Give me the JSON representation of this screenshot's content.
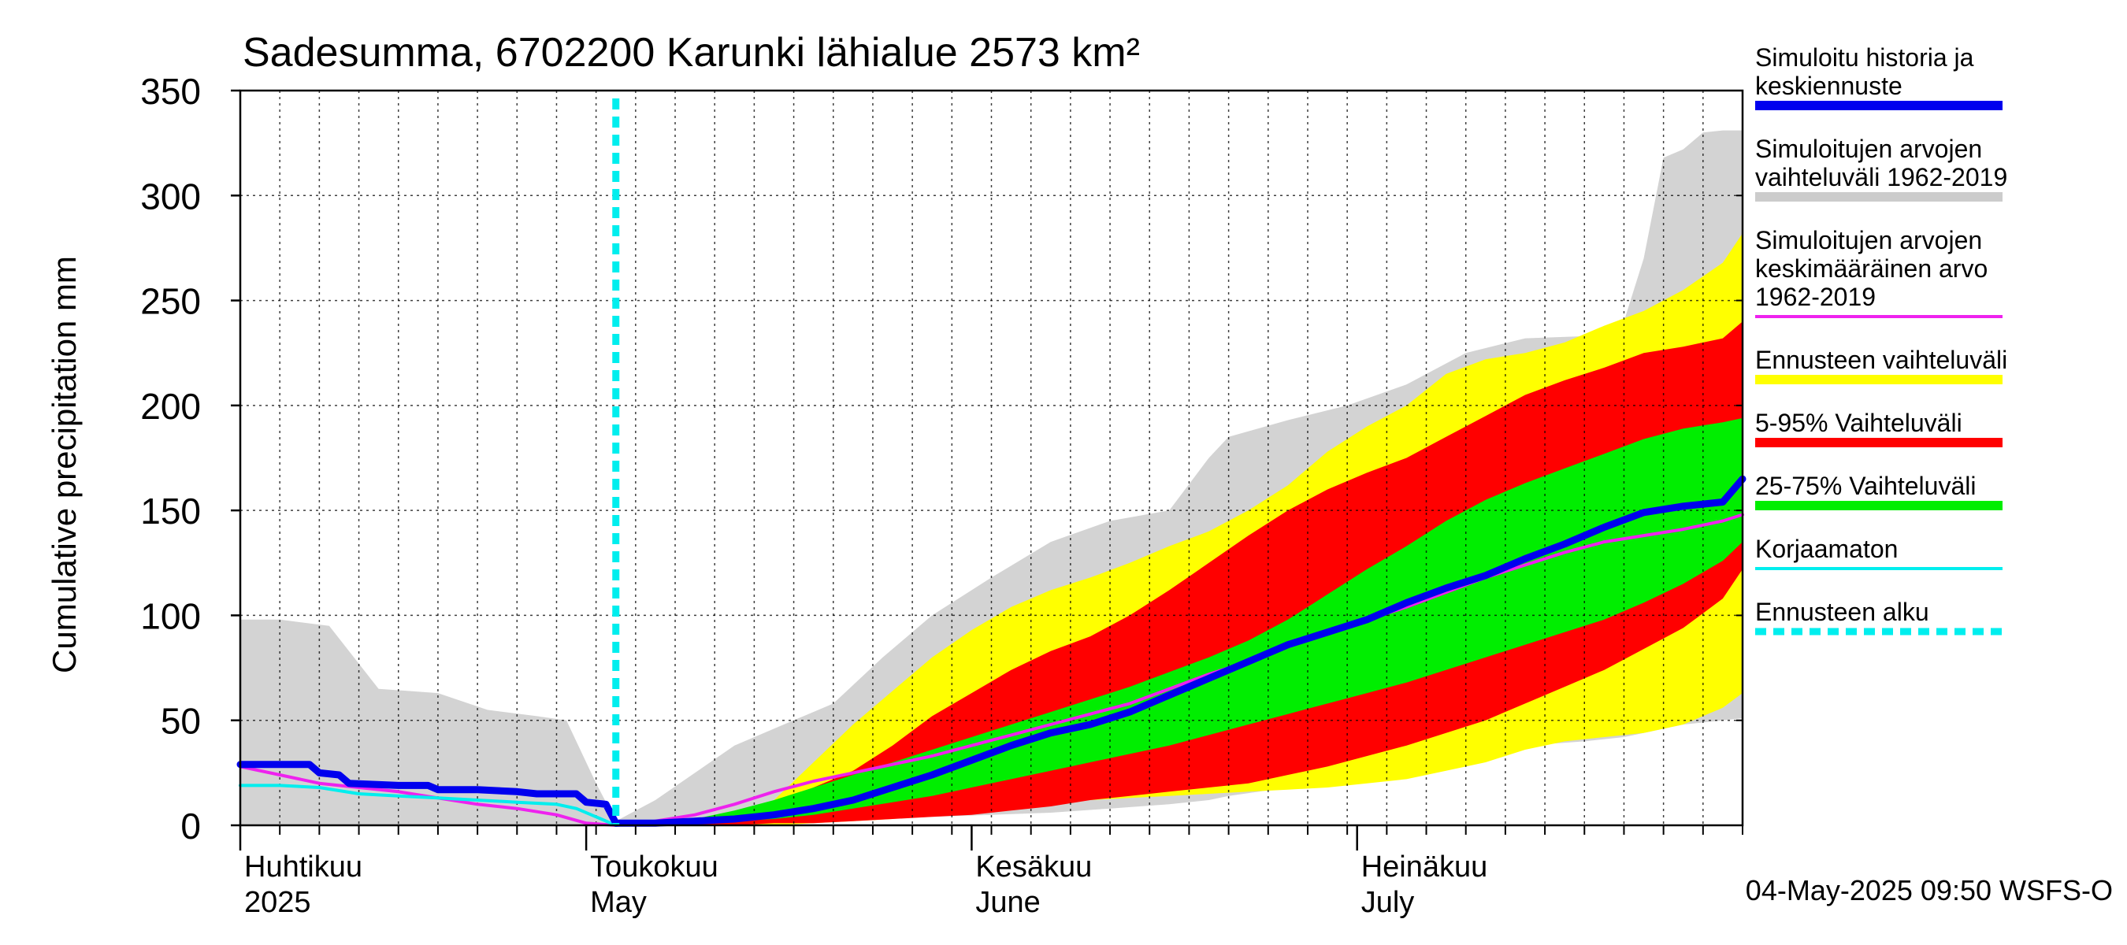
{
  "chart_data": {
    "type": "area",
    "title": "Sadesumma, 6702200 Karunki lähialue 2573 km²",
    "ylabel": "Cumulative precipitation   mm",
    "xlabel": "",
    "ylim": [
      0,
      350
    ],
    "yticks": [
      0,
      50,
      100,
      150,
      200,
      250,
      300,
      350
    ],
    "xlim_day": [
      0,
      152
    ],
    "grid": true,
    "legend_position": "right",
    "timestamp": "04-May-2025 09:50 WSFS-O",
    "month_labels": [
      {
        "line1": "Huhtikuu",
        "line2": "2025",
        "day": 0
      },
      {
        "line1": "Toukokuu",
        "line2": "May",
        "day": 35
      },
      {
        "line1": "Kesäkuu",
        "line2": "June",
        "day": 74
      },
      {
        "line1": "Heinäkuu",
        "line2": "July",
        "day": 113
      }
    ],
    "forecast_start_day": 38,
    "legend": [
      {
        "label_lines": [
          "Simuloitu historia ja",
          "keskiennuste"
        ],
        "color": "#0000ee",
        "style": "line"
      },
      {
        "label_lines": [
          "Simuloitujen arvojen",
          "vaihteluväli 1962-2019"
        ],
        "color": "#cccccc",
        "style": "line"
      },
      {
        "label_lines": [
          "Simuloitujen arvojen",
          "keskimääräinen arvo",
          "   1962-2019"
        ],
        "color": "#ee22ee",
        "style": "thin"
      },
      {
        "label_lines": [
          "Ennusteen vaihteluväli"
        ],
        "color": "#ffff00",
        "style": "line"
      },
      {
        "label_lines": [
          "5-95% Vaihteluväli"
        ],
        "color": "#ff0000",
        "style": "line"
      },
      {
        "label_lines": [
          "25-75% Vaihteluväli"
        ],
        "color": "#00ee00",
        "style": "line"
      },
      {
        "label_lines": [
          "Korjaamaton"
        ],
        "color": "#00eeee",
        "style": "thin"
      },
      {
        "label_lines": [
          "Ennusteen alku"
        ],
        "color": "#00eeee",
        "style": "dashed"
      }
    ],
    "bands": [
      {
        "name": "Simuloitujen arvojen vaihteluväli 1962-2019",
        "color": "#d3d3d3",
        "x": [
          0,
          4,
          9,
          14,
          20,
          25,
          30,
          33,
          36,
          38,
          42,
          46,
          50,
          55,
          60,
          65,
          70,
          76,
          82,
          88,
          94,
          98,
          100,
          106,
          112,
          118,
          124,
          130,
          136,
          140,
          142,
          144,
          146,
          148,
          150,
          152
        ],
        "lower": [
          0,
          0,
          0,
          0,
          0,
          0,
          0,
          0,
          0,
          0,
          0,
          0,
          1,
          1,
          2,
          3,
          4,
          5,
          6,
          8,
          10,
          12,
          14,
          18,
          22,
          28,
          34,
          38,
          40,
          42,
          44,
          46,
          48,
          49,
          50,
          51
        ],
        "upper": [
          98,
          98,
          95,
          65,
          63,
          55,
          52,
          50,
          20,
          2,
          12,
          25,
          38,
          48,
          58,
          80,
          100,
          118,
          135,
          145,
          150,
          175,
          185,
          193,
          200,
          210,
          225,
          232,
          233,
          240,
          270,
          318,
          322,
          330,
          331,
          331
        ]
      },
      {
        "name": "Ennusteen vaihteluväli",
        "color": "#ffff00",
        "x": [
          38,
          42,
          46,
          50,
          54,
          58,
          62,
          66,
          70,
          74,
          78,
          82,
          86,
          90,
          94,
          98,
          102,
          106,
          110,
          114,
          118,
          122,
          126,
          130,
          134,
          138,
          142,
          146,
          150,
          152
        ],
        "lower": [
          0,
          0,
          0,
          0,
          0,
          1,
          2,
          3,
          5,
          8,
          10,
          11,
          12,
          13,
          14,
          15,
          16,
          17,
          18,
          20,
          22,
          26,
          30,
          36,
          40,
          42,
          44,
          48,
          56,
          63
        ],
        "upper": [
          0,
          1,
          3,
          6,
          12,
          30,
          48,
          64,
          80,
          93,
          104,
          112,
          118,
          125,
          133,
          140,
          150,
          162,
          178,
          190,
          200,
          215,
          222,
          225,
          230,
          238,
          245,
          255,
          268,
          282
        ]
      },
      {
        "name": "5-95% Vaihteluväli",
        "color": "#ff0000",
        "x": [
          38,
          42,
          46,
          50,
          54,
          58,
          62,
          66,
          70,
          74,
          78,
          82,
          86,
          90,
          94,
          98,
          102,
          106,
          110,
          114,
          118,
          122,
          126,
          130,
          134,
          138,
          142,
          146,
          150,
          152
        ],
        "lower": [
          0,
          0,
          0,
          0,
          1,
          1,
          2,
          3,
          4,
          5,
          7,
          9,
          12,
          14,
          16,
          18,
          20,
          24,
          28,
          33,
          38,
          44,
          50,
          58,
          66,
          74,
          84,
          94,
          108,
          122
        ],
        "upper": [
          0,
          1,
          2,
          5,
          10,
          18,
          26,
          38,
          52,
          63,
          74,
          83,
          90,
          100,
          112,
          125,
          138,
          150,
          160,
          168,
          175,
          185,
          195,
          205,
          212,
          218,
          225,
          228,
          232,
          240
        ]
      },
      {
        "name": "25-75% Vaihteluväli",
        "color": "#00ee00",
        "x": [
          38,
          42,
          46,
          50,
          54,
          58,
          62,
          66,
          70,
          74,
          78,
          82,
          86,
          90,
          94,
          98,
          102,
          106,
          110,
          114,
          118,
          122,
          126,
          130,
          134,
          138,
          142,
          146,
          150,
          152
        ],
        "lower": [
          0,
          0,
          1,
          2,
          3,
          5,
          8,
          11,
          14,
          18,
          22,
          26,
          30,
          34,
          38,
          43,
          48,
          53,
          58,
          63,
          68,
          74,
          80,
          86,
          92,
          98,
          106,
          115,
          126,
          135
        ],
        "upper": [
          0,
          1,
          3,
          7,
          12,
          18,
          24,
          30,
          36,
          42,
          48,
          54,
          60,
          66,
          73,
          80,
          88,
          98,
          110,
          122,
          133,
          145,
          155,
          163,
          170,
          177,
          184,
          189,
          192,
          194
        ]
      }
    ],
    "series": [
      {
        "name": "Simuloitujen arvojen keskimääräinen arvo 1962-2019",
        "color": "#ee22ee",
        "width": 4,
        "x": [
          0,
          4,
          8,
          12,
          16,
          20,
          24,
          28,
          32,
          35,
          38,
          42,
          46,
          50,
          54,
          58,
          62,
          66,
          70,
          74,
          78,
          82,
          86,
          90,
          94,
          98,
          102,
          106,
          110,
          114,
          118,
          122,
          126,
          130,
          134,
          138,
          142,
          146,
          150,
          152
        ],
        "y": [
          28,
          24,
          20,
          18,
          16,
          13,
          10,
          8,
          5,
          1,
          0,
          2,
          5,
          10,
          16,
          21,
          25,
          29,
          33,
          38,
          43,
          48,
          53,
          58,
          65,
          72,
          78,
          85,
          92,
          98,
          104,
          111,
          118,
          124,
          130,
          135,
          138,
          141,
          145,
          148
        ]
      },
      {
        "name": "Korjaamaton",
        "color": "#00eeee",
        "width": 4,
        "x": [
          0,
          4,
          8,
          12,
          16,
          20,
          24,
          28,
          32,
          34,
          36,
          38
        ],
        "y": [
          19,
          19,
          18,
          15,
          14,
          13,
          12,
          11,
          10,
          8,
          4,
          0
        ]
      },
      {
        "name": "Simuloitu historia ja keskiennuste",
        "color": "#0000ee",
        "width": 9,
        "x": [
          0,
          4,
          7,
          8,
          10,
          11,
          16,
          19,
          20,
          24,
          28,
          30,
          34,
          35,
          37,
          38,
          42,
          46,
          50,
          54,
          58,
          62,
          66,
          70,
          74,
          78,
          82,
          86,
          90,
          94,
          98,
          102,
          106,
          110,
          114,
          118,
          122,
          126,
          130,
          134,
          138,
          142,
          146,
          150,
          152
        ],
        "y": [
          29,
          29,
          29,
          25,
          24,
          20,
          19,
          19,
          17,
          17,
          16,
          15,
          15,
          11,
          10,
          1,
          1,
          2,
          3,
          5,
          8,
          12,
          18,
          24,
          31,
          38,
          44,
          48,
          54,
          62,
          70,
          78,
          86,
          92,
          98,
          106,
          113,
          119,
          127,
          134,
          142,
          149,
          152,
          154,
          165
        ]
      }
    ]
  }
}
